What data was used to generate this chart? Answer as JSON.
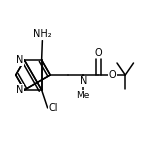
{
  "bg": "#ffffff",
  "lc": "#000000",
  "lw": 1.1,
  "fs": 7.0,
  "figsize": [
    1.5,
    1.5
  ],
  "dpi": 100,
  "xlim": [
    0.0,
    1.0
  ],
  "ylim": [
    0.15,
    0.85
  ]
}
